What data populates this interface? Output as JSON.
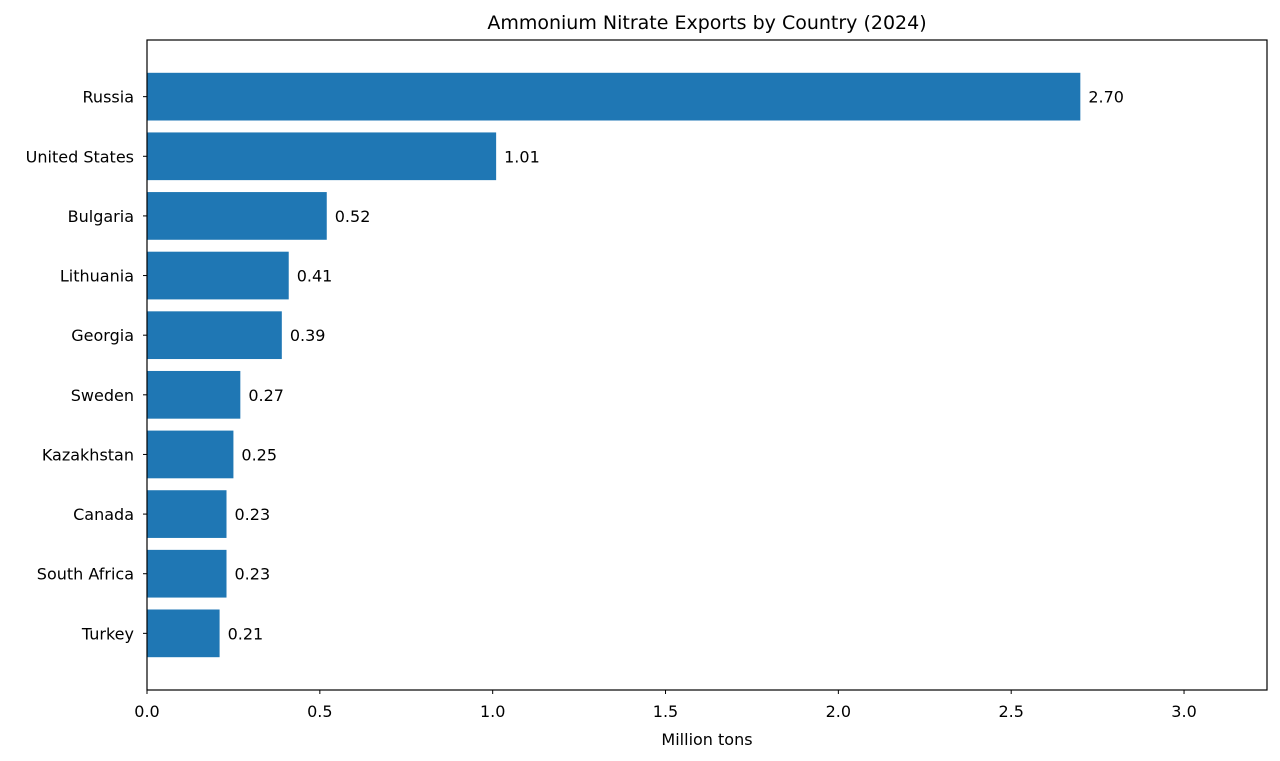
{
  "chart_data": {
    "type": "bar",
    "orientation": "horizontal",
    "title": "Ammonium Nitrate Exports by Country (2024)",
    "xlabel": "Million tons",
    "ylabel": "",
    "categories": [
      "Russia",
      "United States",
      "Bulgaria",
      "Lithuania",
      "Georgia",
      "Sweden",
      "Kazakhstan",
      "Canada",
      "South Africa",
      "Turkey"
    ],
    "values": [
      2.7,
      1.01,
      0.52,
      0.41,
      0.39,
      0.27,
      0.25,
      0.23,
      0.23,
      0.21
    ],
    "data_labels": [
      "2.70",
      "1.01",
      "0.52",
      "0.41",
      "0.39",
      "0.27",
      "0.25",
      "0.23",
      "0.23",
      "0.21"
    ],
    "xlim": [
      0,
      3.24
    ],
    "xticks": [
      0.0,
      0.5,
      1.0,
      1.5,
      2.0,
      2.5,
      3.0
    ],
    "xtick_labels": [
      "0.0",
      "0.5",
      "1.0",
      "1.5",
      "2.0",
      "2.5",
      "3.0"
    ],
    "grid": false,
    "bar_color": "#1f77b4"
  }
}
